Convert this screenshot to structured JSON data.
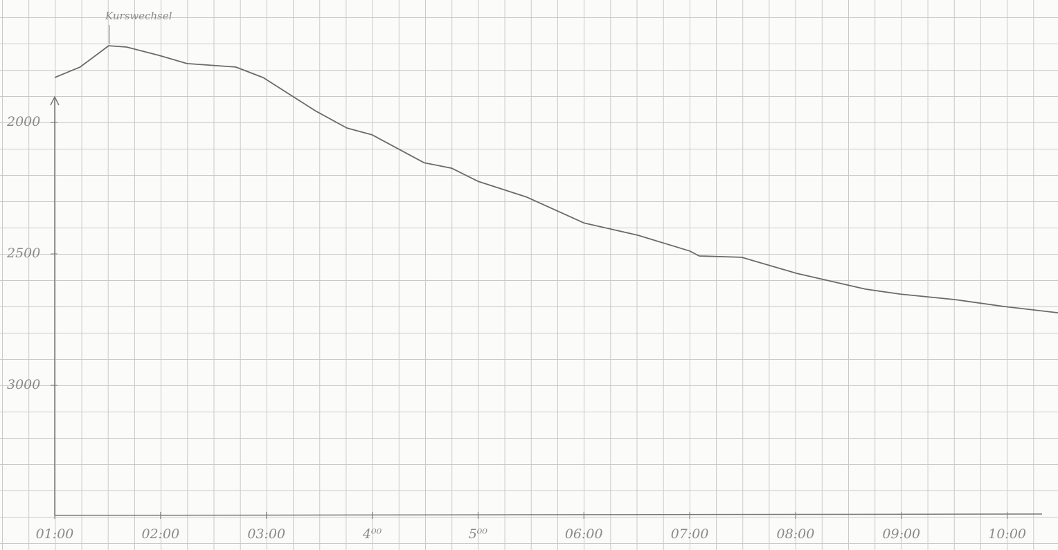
{
  "chart_data": {
    "type": "line",
    "annotation": "Kurswechsel",
    "x": [
      1.0,
      1.24,
      1.51,
      1.68,
      1.99,
      2.25,
      2.71,
      2.97,
      3.46,
      3.76,
      4.0,
      4.49,
      4.75,
      5.0,
      5.46,
      6.0,
      6.51,
      7.0,
      7.09,
      7.49,
      8.01,
      8.66,
      8.99,
      9.51,
      9.97,
      10.48
    ],
    "series": [
      {
        "color": "#6a6a6a",
        "values": [
          1829,
          1789,
          1708,
          1713,
          1745,
          1776,
          1789,
          1829,
          1955,
          2021,
          2047,
          2153,
          2174,
          2224,
          2284,
          2382,
          2429,
          2489,
          2508,
          2513,
          2574,
          2634,
          2653,
          2674,
          2700,
          2724
        ]
      }
    ],
    "xlim": [
      1,
      10.48
    ],
    "xticks": [
      {
        "value": 1,
        "label": "01:00"
      },
      {
        "value": 2,
        "label": "02:00"
      },
      {
        "value": 3,
        "label": "03:00"
      },
      {
        "value": 4,
        "label": "4⁰⁰"
      },
      {
        "value": 5,
        "label": "5⁰⁰"
      },
      {
        "value": 6,
        "label": "06:00"
      },
      {
        "value": 7,
        "label": "07:00"
      },
      {
        "value": 8,
        "label": "08:00"
      },
      {
        "value": 9,
        "label": "09:00"
      },
      {
        "value": 10,
        "label": "10:00"
      }
    ],
    "ylim": [
      3495,
      1534
    ],
    "yticks": [
      2000,
      2500,
      3000
    ]
  }
}
